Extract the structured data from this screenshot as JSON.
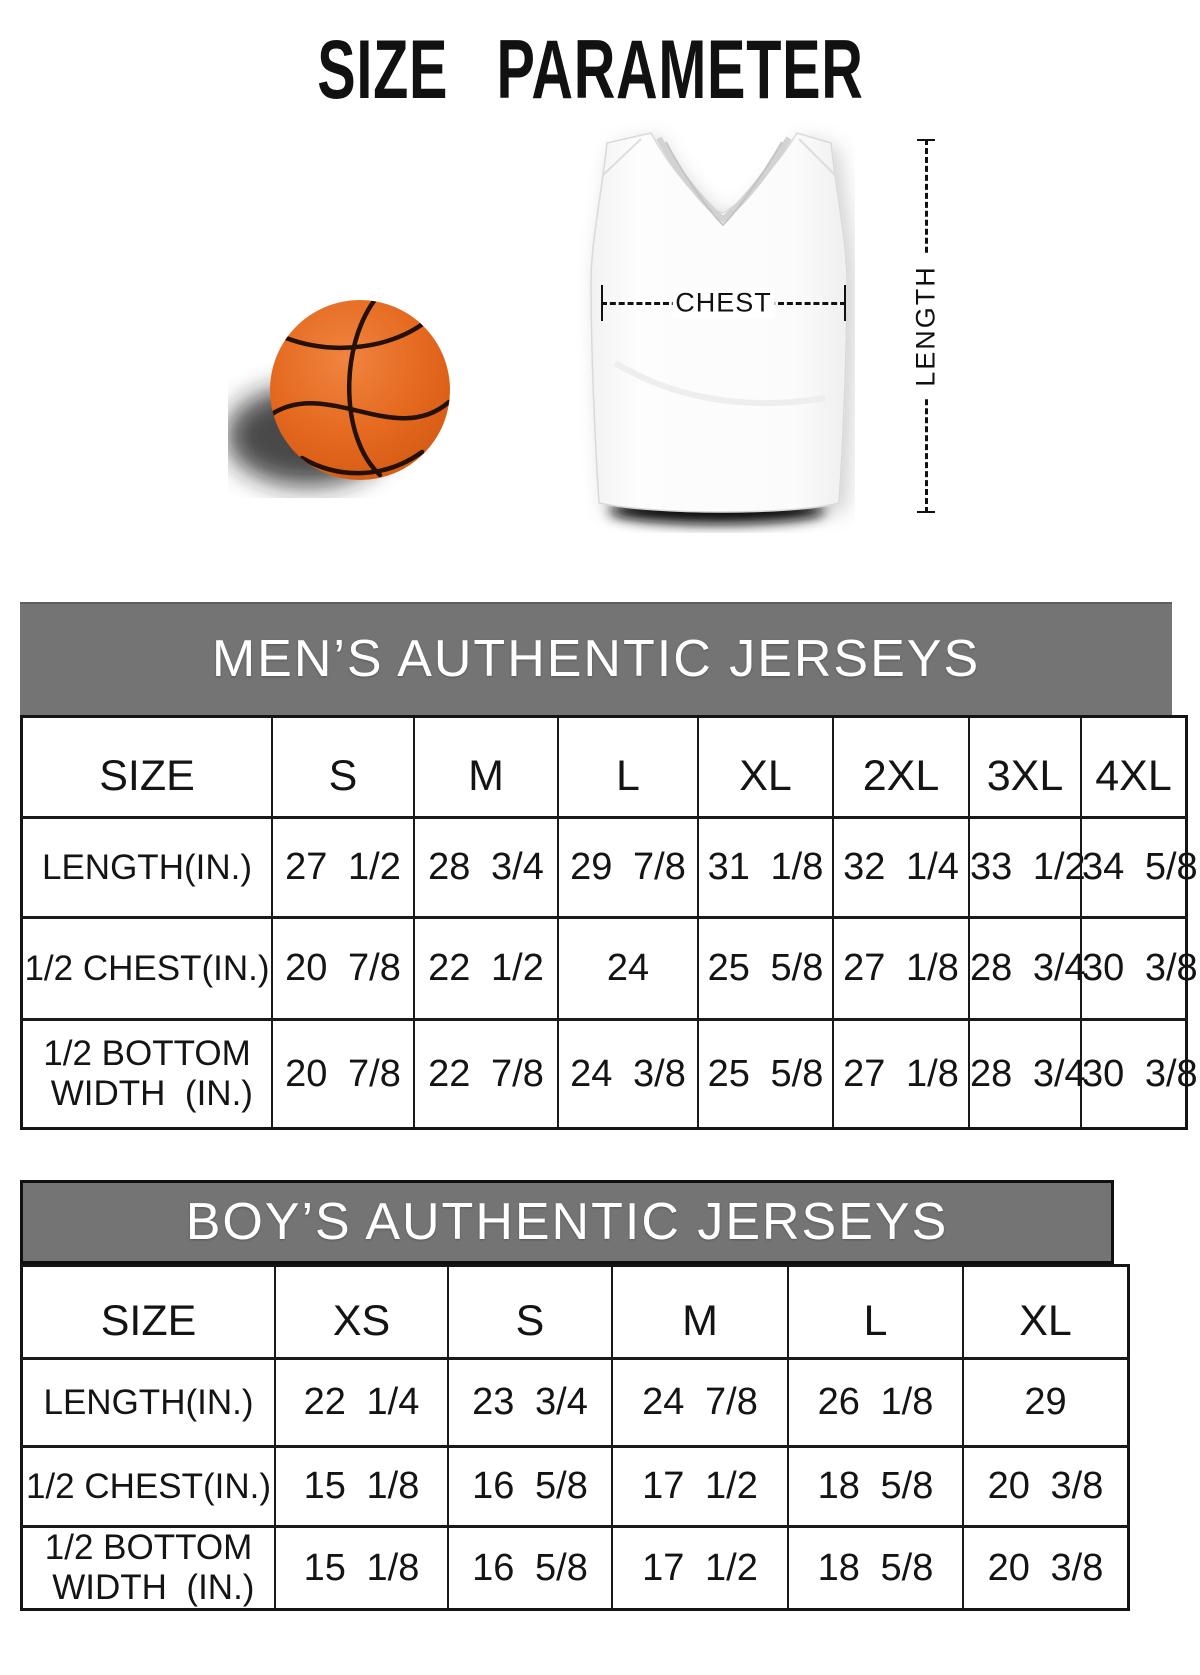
{
  "page": {
    "title": "SIZE PARAMETER"
  },
  "diagram": {
    "chest_label": "CHEST",
    "length_label": "LENGTH"
  },
  "colors": {
    "band_gray": "#747474",
    "ball_orange": "#e5691f",
    "seam_black": "#241104",
    "text_black": "#141414"
  },
  "tables": [
    {
      "title": "MEN’S AUTHENTIC JERSEYS",
      "columns": [
        "SIZE",
        "S",
        "M",
        "L",
        "XL",
        "2XL",
        "3XL",
        "4XL"
      ],
      "rows": [
        {
          "label": "LENGTH(IN.)",
          "values": [
            "27 1/2",
            "28 3/4",
            "29 7/8",
            "31 1/8",
            "32 1/4",
            "33 1/2",
            "34 5/8"
          ]
        },
        {
          "label": "1/2 CHEST(IN.)",
          "values": [
            "20 7/8",
            "22 1/2",
            "24",
            "25 5/8",
            "27 1/8",
            "28 3/4",
            "30 3/8"
          ]
        },
        {
          "label": "1/2 BOTTOM\n WIDTH  (IN.)",
          "values": [
            "20 7/8",
            "22 7/8",
            "24 3/8",
            "25 5/8",
            "27 1/8",
            "28 3/4",
            "30 3/8"
          ]
        }
      ]
    },
    {
      "title": "BOY’S AUTHENTIC JERSEYS",
      "columns": [
        "SIZE",
        "XS",
        "S",
        "M",
        "L",
        "XL"
      ],
      "rows": [
        {
          "label": "LENGTH(IN.)",
          "values": [
            "22 1/4",
            "23 3/4",
            "24 7/8",
            "26 1/8",
            "29"
          ]
        },
        {
          "label": "1/2 CHEST(IN.)",
          "values": [
            "15 1/8",
            "16 5/8",
            "17 1/2",
            "18 5/8",
            "20 3/8"
          ]
        },
        {
          "label": "1/2 BOTTOM\n WIDTH  (IN.)",
          "values": [
            "15 1/8",
            "16 5/8",
            "17 1/2",
            "18 5/8",
            "20 3/8"
          ]
        }
      ]
    }
  ]
}
